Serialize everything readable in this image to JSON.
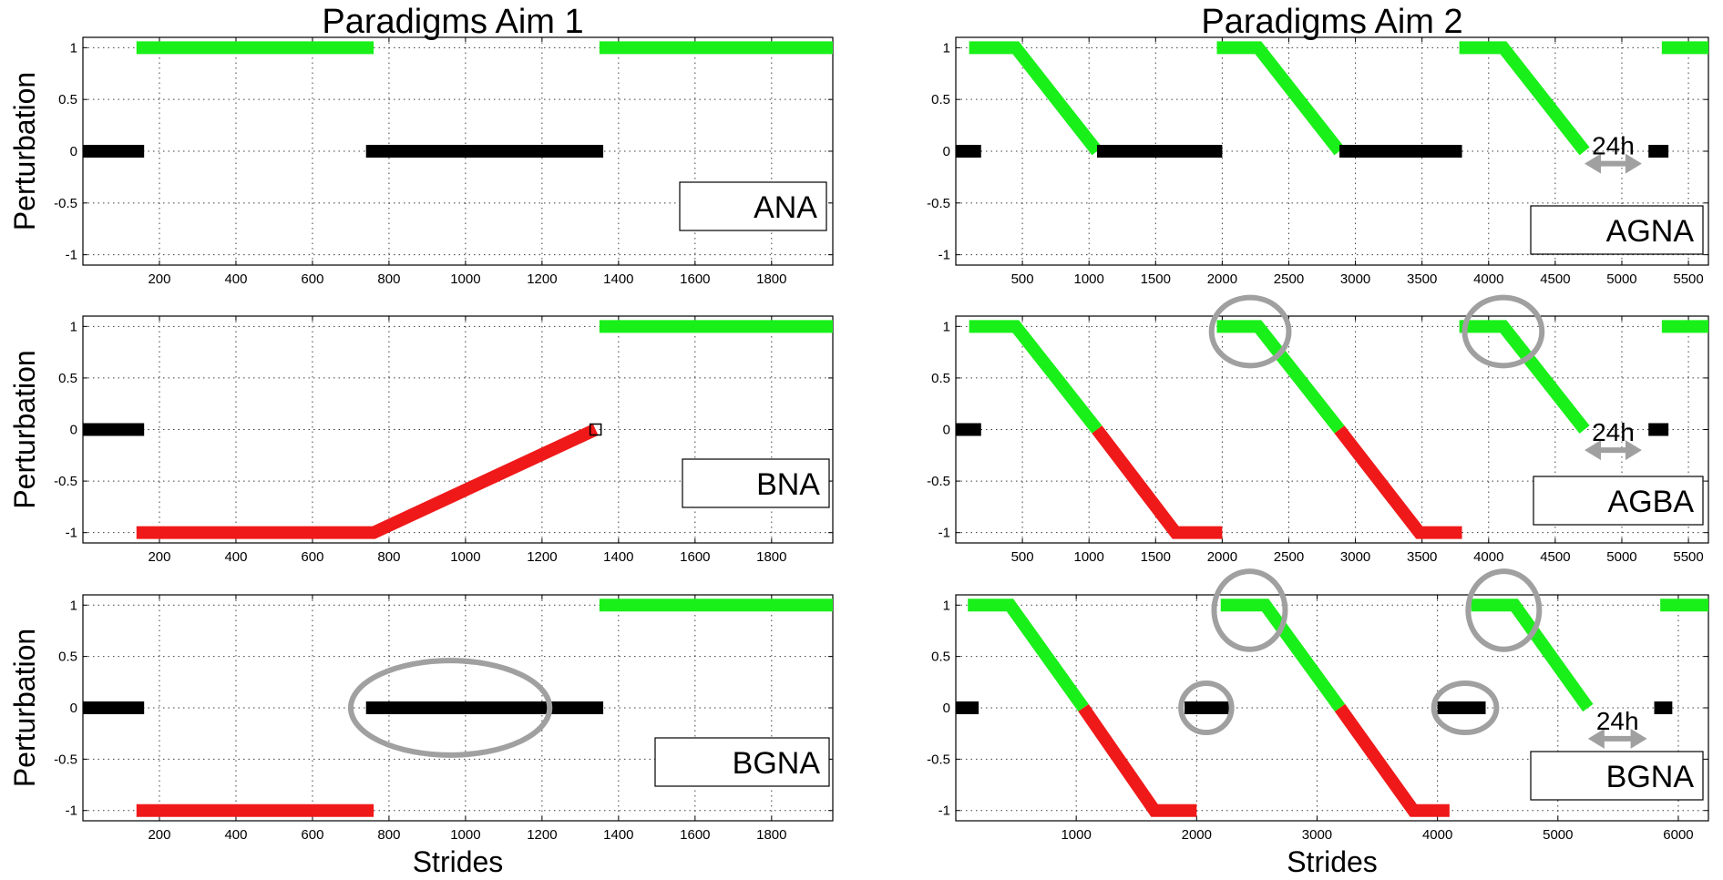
{
  "figure": {
    "column_titles": [
      "Paradigms Aim 1",
      "Paradigms Aim 2"
    ],
    "ylabel": "Perturbation",
    "xlabel": "Strides",
    "colors": {
      "green": "#19f019",
      "black": "#000000",
      "red": "#f01919",
      "annotation": "#a0a0a0",
      "frame": "#000000"
    }
  },
  "chart_data": [
    {
      "type": "line",
      "legend": "ANA",
      "xlabel": "",
      "ylabel": "Perturbation",
      "xlim": [
        0,
        1960
      ],
      "ylim": [
        -1.1,
        1.1
      ],
      "xticks": [
        200,
        400,
        600,
        800,
        1000,
        1200,
        1400,
        1600,
        1800
      ],
      "yticks": [
        1,
        0.5,
        0,
        -0.5,
        -1
      ],
      "ytick_labels": [
        "1",
        "0.5",
        "0",
        "-0.5",
        "-1"
      ],
      "grid": true,
      "series": [
        {
          "color": "black",
          "x": [
            0,
            160
          ],
          "y": [
            0,
            0
          ]
        },
        {
          "color": "green",
          "x": [
            140,
            760
          ],
          "y": [
            1,
            1
          ]
        },
        {
          "color": "black",
          "x": [
            740,
            1360
          ],
          "y": [
            0,
            0
          ]
        },
        {
          "color": "green",
          "x": [
            1350,
            1960
          ],
          "y": [
            1,
            1
          ]
        }
      ],
      "annotations": []
    },
    {
      "type": "line",
      "legend": "AGNA",
      "xlabel": "",
      "ylabel": "",
      "xlim": [
        0,
        5650
      ],
      "ylim": [
        -1.1,
        1.1
      ],
      "xticks": [
        500,
        1000,
        1500,
        2000,
        2500,
        3000,
        3500,
        4000,
        4500,
        5000,
        5500
      ],
      "yticks": [
        1,
        0.5,
        0,
        -0.5,
        -1
      ],
      "ytick_labels": [
        "1",
        "0.5",
        "0",
        "-0.5",
        "-1"
      ],
      "grid": true,
      "series": [
        {
          "color": "black",
          "x": [
            0,
            190
          ],
          "y": [
            0,
            0
          ]
        },
        {
          "color": "green",
          "x": [
            100,
            450,
            1060
          ],
          "y": [
            1,
            1,
            0
          ]
        },
        {
          "color": "black",
          "x": [
            1060,
            2000
          ],
          "y": [
            0,
            0
          ]
        },
        {
          "color": "green",
          "x": [
            1960,
            2270,
            2880
          ],
          "y": [
            1,
            1,
            0
          ]
        },
        {
          "color": "black",
          "x": [
            2880,
            3800
          ],
          "y": [
            0,
            0
          ]
        },
        {
          "color": "green",
          "x": [
            3780,
            4110,
            4720
          ],
          "y": [
            1,
            1,
            0
          ]
        },
        {
          "color": "black",
          "x": [
            5200,
            5350
          ],
          "y": [
            0,
            0
          ]
        },
        {
          "color": "green",
          "x": [
            5300,
            5650
          ],
          "y": [
            1,
            1
          ]
        }
      ],
      "annotations": [
        {
          "type": "arrow",
          "label": "24h",
          "x": [
            4720,
            5150
          ],
          "y": -0.12
        }
      ]
    },
    {
      "type": "line",
      "legend": "BNA",
      "xlabel": "",
      "ylabel": "Perturbation",
      "xlim": [
        0,
        1960
      ],
      "ylim": [
        -1.1,
        1.1
      ],
      "xticks": [
        200,
        400,
        600,
        800,
        1000,
        1200,
        1400,
        1600,
        1800
      ],
      "yticks": [
        1,
        0.5,
        0,
        -0.5,
        -1
      ],
      "ytick_labels": [
        "1",
        "0.5",
        "0",
        "-0.5",
        "-1"
      ],
      "grid": true,
      "series": [
        {
          "color": "black",
          "x": [
            0,
            160
          ],
          "y": [
            0,
            0
          ]
        },
        {
          "color": "red",
          "x": [
            140,
            760,
            1340
          ],
          "y": [
            -1,
            -1,
            0
          ]
        },
        {
          "color": "green",
          "x": [
            1350,
            1960
          ],
          "y": [
            1,
            1
          ]
        }
      ],
      "annotations": [
        {
          "type": "square-marker",
          "x": 1340,
          "y": 0
        }
      ]
    },
    {
      "type": "line",
      "legend": "AGBA",
      "xlabel": "",
      "ylabel": "",
      "xlim": [
        0,
        5650
      ],
      "ylim": [
        -1.1,
        1.1
      ],
      "xticks": [
        500,
        1000,
        1500,
        2000,
        2500,
        3000,
        3500,
        4000,
        4500,
        5000,
        5500
      ],
      "yticks": [
        1,
        0.5,
        0,
        -0.5,
        -1
      ],
      "ytick_labels": [
        "1",
        "0.5",
        "0",
        "-0.5",
        "-1"
      ],
      "grid": true,
      "series": [
        {
          "color": "black",
          "x": [
            0,
            190
          ],
          "y": [
            0,
            0
          ]
        },
        {
          "color": "green",
          "x": [
            100,
            450,
            1060
          ],
          "y": [
            1,
            1,
            0
          ]
        },
        {
          "color": "red",
          "x": [
            1060,
            1650,
            2000
          ],
          "y": [
            0,
            -1,
            -1
          ]
        },
        {
          "color": "green",
          "x": [
            1960,
            2270,
            2880
          ],
          "y": [
            1,
            1,
            0
          ]
        },
        {
          "color": "red",
          "x": [
            2880,
            3480,
            3800
          ],
          "y": [
            0,
            -1,
            -1
          ]
        },
        {
          "color": "green",
          "x": [
            3780,
            4110,
            4720
          ],
          "y": [
            1,
            1,
            0
          ]
        },
        {
          "color": "black",
          "x": [
            5200,
            5350
          ],
          "y": [
            0,
            0
          ]
        },
        {
          "color": "green",
          "x": [
            5300,
            5650
          ],
          "y": [
            1,
            1
          ]
        }
      ],
      "annotations": [
        {
          "type": "ellipse",
          "cx": 2210,
          "cy": 0.95,
          "rx": 290,
          "ry": 0.33
        },
        {
          "type": "ellipse",
          "cx": 4110,
          "cy": 0.95,
          "rx": 290,
          "ry": 0.33
        },
        {
          "type": "arrow",
          "label": "24h",
          "x": [
            4720,
            5150
          ],
          "y": -0.2
        }
      ]
    },
    {
      "type": "line",
      "legend": "BGNA",
      "xlabel": "Strides",
      "ylabel": "Perturbation",
      "xlim": [
        0,
        1960
      ],
      "ylim": [
        -1.1,
        1.1
      ],
      "xticks": [
        200,
        400,
        600,
        800,
        1000,
        1200,
        1400,
        1600,
        1800
      ],
      "yticks": [
        1,
        0.5,
        0,
        -0.5,
        -1
      ],
      "ytick_labels": [
        "1",
        "0.5",
        "0",
        "-0.5",
        "-1"
      ],
      "grid": true,
      "series": [
        {
          "color": "black",
          "x": [
            0,
            160
          ],
          "y": [
            0,
            0
          ]
        },
        {
          "color": "red",
          "x": [
            140,
            760
          ],
          "y": [
            -1,
            -1
          ]
        },
        {
          "color": "black",
          "x": [
            740,
            1360
          ],
          "y": [
            0,
            0
          ]
        },
        {
          "color": "green",
          "x": [
            1350,
            1960
          ],
          "y": [
            1,
            1
          ]
        }
      ],
      "annotations": [
        {
          "type": "ellipse",
          "cx": 960,
          "cy": 0,
          "rx": 260,
          "ry": 0.46
        }
      ]
    },
    {
      "type": "line",
      "legend": "BGNA",
      "xlabel": "Strides",
      "ylabel": "",
      "xlim": [
        0,
        6250
      ],
      "ylim": [
        -1.1,
        1.1
      ],
      "xticks": [
        1000,
        2000,
        3000,
        4000,
        5000,
        6000
      ],
      "yticks": [
        1,
        0.5,
        0,
        -0.5,
        -1
      ],
      "ytick_labels": [
        "1",
        "0.5",
        "0",
        "-0.5",
        "-1"
      ],
      "grid": true,
      "series": [
        {
          "color": "black",
          "x": [
            0,
            190
          ],
          "y": [
            0,
            0
          ]
        },
        {
          "color": "green",
          "x": [
            100,
            450,
            1060
          ],
          "y": [
            1,
            1,
            0
          ]
        },
        {
          "color": "red",
          "x": [
            1060,
            1650,
            2000
          ],
          "y": [
            0,
            -1,
            -1
          ]
        },
        {
          "color": "black",
          "x": [
            1900,
            2300
          ],
          "y": [
            0,
            0
          ]
        },
        {
          "color": "green",
          "x": [
            2200,
            2570,
            3190
          ],
          "y": [
            1,
            1,
            0
          ]
        },
        {
          "color": "red",
          "x": [
            3190,
            3800,
            4100
          ],
          "y": [
            0,
            -1,
            -1
          ]
        },
        {
          "color": "black",
          "x": [
            4000,
            4400
          ],
          "y": [
            0,
            0
          ]
        },
        {
          "color": "green",
          "x": [
            4280,
            4640,
            5250
          ],
          "y": [
            1,
            1,
            0
          ]
        },
        {
          "color": "black",
          "x": [
            5800,
            5950
          ],
          "y": [
            0,
            0
          ]
        },
        {
          "color": "green",
          "x": [
            5850,
            6250
          ],
          "y": [
            1,
            1
          ]
        }
      ],
      "annotations": [
        {
          "type": "ellipse",
          "cx": 2080,
          "cy": 0,
          "rx": 210,
          "ry": 0.24
        },
        {
          "type": "ellipse",
          "cx": 2440,
          "cy": 0.95,
          "rx": 295,
          "ry": 0.38
        },
        {
          "type": "ellipse",
          "cx": 4230,
          "cy": 0,
          "rx": 260,
          "ry": 0.24
        },
        {
          "type": "ellipse",
          "cx": 4550,
          "cy": 0.95,
          "rx": 295,
          "ry": 0.38
        },
        {
          "type": "arrow",
          "label": "24h",
          "x": [
            5250,
            5740
          ],
          "y": -0.3
        }
      ]
    }
  ]
}
